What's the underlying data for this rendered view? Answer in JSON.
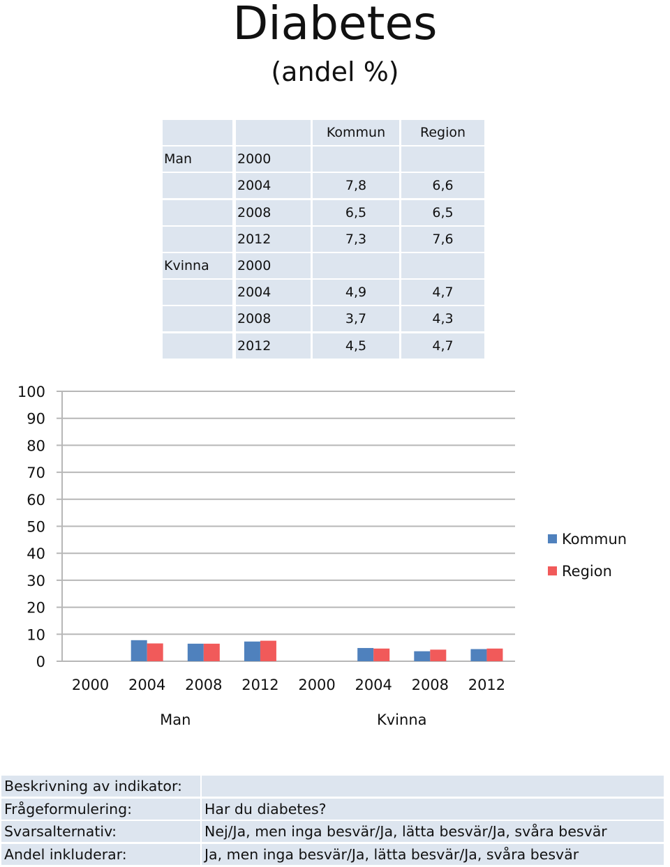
{
  "title": "Diabetes",
  "subtitle": "(andel %)",
  "table": {
    "headers": [
      "Kommun",
      "Region"
    ],
    "groups": [
      {
        "name": "Man",
        "rows": [
          {
            "year": "2000",
            "kommun": "",
            "region": ""
          },
          {
            "year": "2004",
            "kommun": "7,8",
            "region": "6,6"
          },
          {
            "year": "2008",
            "kommun": "6,5",
            "region": "6,5"
          },
          {
            "year": "2012",
            "kommun": "7,3",
            "region": "7,6"
          }
        ]
      },
      {
        "name": "Kvinna",
        "rows": [
          {
            "year": "2000",
            "kommun": "",
            "region": ""
          },
          {
            "year": "2004",
            "kommun": "4,9",
            "region": "4,7"
          },
          {
            "year": "2008",
            "kommun": "3,7",
            "region": "4,3"
          },
          {
            "year": "2012",
            "kommun": "4,5",
            "region": "4,7"
          }
        ]
      }
    ]
  },
  "chart_data": {
    "type": "bar",
    "categories": [
      "2000",
      "2004",
      "2008",
      "2012",
      "2000",
      "2004",
      "2008",
      "2012"
    ],
    "groups": [
      {
        "name": "Man",
        "categories": [
          "2000",
          "2004",
          "2008",
          "2012"
        ]
      },
      {
        "name": "Kvinna",
        "categories": [
          "2000",
          "2004",
          "2008",
          "2012"
        ]
      }
    ],
    "series": [
      {
        "name": "Kommun",
        "color": "#4f81bd",
        "values": [
          null,
          7.8,
          6.5,
          7.3,
          null,
          4.9,
          3.7,
          4.5
        ]
      },
      {
        "name": "Region",
        "color": "#f15a5a",
        "values": [
          null,
          6.6,
          6.5,
          7.6,
          null,
          4.7,
          4.3,
          4.7
        ]
      }
    ],
    "ylim": [
      0,
      100
    ],
    "yticks": [
      0,
      10,
      20,
      30,
      40,
      50,
      60,
      70,
      80,
      90,
      100
    ],
    "grid": true,
    "legend_position": "right"
  },
  "info": {
    "rows": [
      {
        "label": "Beskrivning av indikator:",
        "value": ""
      },
      {
        "label": "Frågeformulering:",
        "value": "Har du diabetes?"
      },
      {
        "label": "Svarsalternativ:",
        "value": "Nej/Ja, men inga besvär/Ja, lätta besvär/Ja, svåra besvär"
      },
      {
        "label": "Andel inkluderar:",
        "value": "Ja, men inga besvär/Ja, lätta besvär/Ja, svåra besvär"
      }
    ]
  }
}
